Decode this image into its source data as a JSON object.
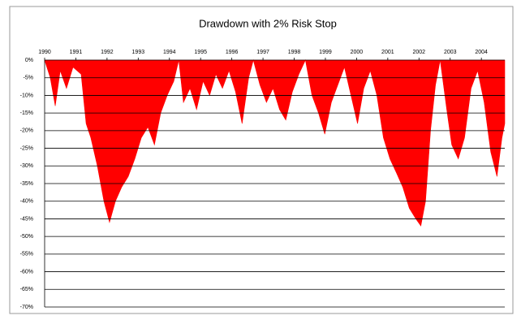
{
  "chart_data": {
    "type": "area",
    "title": "Drawdown with 2% Risk Stop",
    "color": "#ff0000",
    "grid": true,
    "x": [
      1990.0,
      1990.18,
      1990.34,
      1990.5,
      1990.7,
      1990.91,
      1991.17,
      1991.33,
      1991.48,
      1991.69,
      1991.9,
      1992.08,
      1992.27,
      1992.47,
      1992.68,
      1992.89,
      1993.1,
      1993.31,
      1993.52,
      1993.72,
      1993.93,
      1994.14,
      1994.3,
      1994.45,
      1994.66,
      1994.87,
      1995.08,
      1995.29,
      1995.49,
      1995.7,
      1995.91,
      1996.12,
      1996.33,
      1996.54,
      1996.69,
      1996.9,
      1997.11,
      1997.32,
      1997.53,
      1997.73,
      1997.94,
      1998.15,
      1998.36,
      1998.57,
      1998.78,
      1998.98,
      1999.19,
      1999.4,
      1999.61,
      1999.82,
      2000.03,
      2000.23,
      2000.44,
      2000.65,
      2000.86,
      2001.07,
      2001.28,
      2001.48,
      2001.69,
      2001.9,
      2002.06,
      2002.21,
      2002.37,
      2002.53,
      2002.68,
      2002.89,
      2003.05,
      2003.26,
      2003.46,
      2003.67,
      2003.88,
      2004.09,
      2004.3,
      2004.5,
      2004.66,
      2004.75
    ],
    "values": [
      0,
      -5,
      -13,
      -3,
      -8,
      -2,
      -4,
      -18,
      -22,
      -30,
      -40,
      -46,
      -40,
      -36,
      -33,
      -28,
      -22,
      -19,
      -24,
      -15,
      -10,
      -6,
      0,
      -12,
      -8,
      -14,
      -6,
      -10,
      -4,
      -8,
      -3,
      -9,
      -18,
      -5,
      0,
      -7,
      -12,
      -8,
      -14,
      -17,
      -9,
      -4,
      0,
      -10,
      -15,
      -21,
      -12,
      -7,
      -2,
      -10,
      -18,
      -8,
      -3,
      -10,
      -22,
      -28,
      -32,
      -36,
      -42,
      -45,
      -47,
      -40,
      -20,
      -7,
      0,
      -14,
      -24,
      -28,
      -22,
      -8,
      -3,
      -12,
      -26,
      -33,
      -22,
      -18
    ],
    "xlim": [
      1990,
      2004.75
    ],
    "xticks": [
      1990,
      1991,
      1992,
      1993,
      1994,
      1995,
      1996,
      1997,
      1998,
      1999,
      2000,
      2001,
      2002,
      2003,
      2004
    ],
    "ylim": [
      -70,
      0
    ],
    "yticks": [
      {
        "value": 0,
        "label": "0%"
      },
      {
        "value": -5,
        "label": "-5%"
      },
      {
        "value": -10,
        "label": "-10%"
      },
      {
        "value": -15,
        "label": "-15%"
      },
      {
        "value": -20,
        "label": "-20%"
      },
      {
        "value": -25,
        "label": "-25%"
      },
      {
        "value": -30,
        "label": "-30%"
      },
      {
        "value": -35,
        "label": "-35%"
      },
      {
        "value": -40,
        "label": "-40%"
      },
      {
        "value": -45,
        "label": "-45%"
      },
      {
        "value": -50,
        "label": "-50%"
      },
      {
        "value": -55,
        "label": "-55%"
      },
      {
        "value": -60,
        "label": "-60%"
      },
      {
        "value": -65,
        "label": "-65%"
      },
      {
        "value": -70,
        "label": "-70%"
      }
    ]
  }
}
